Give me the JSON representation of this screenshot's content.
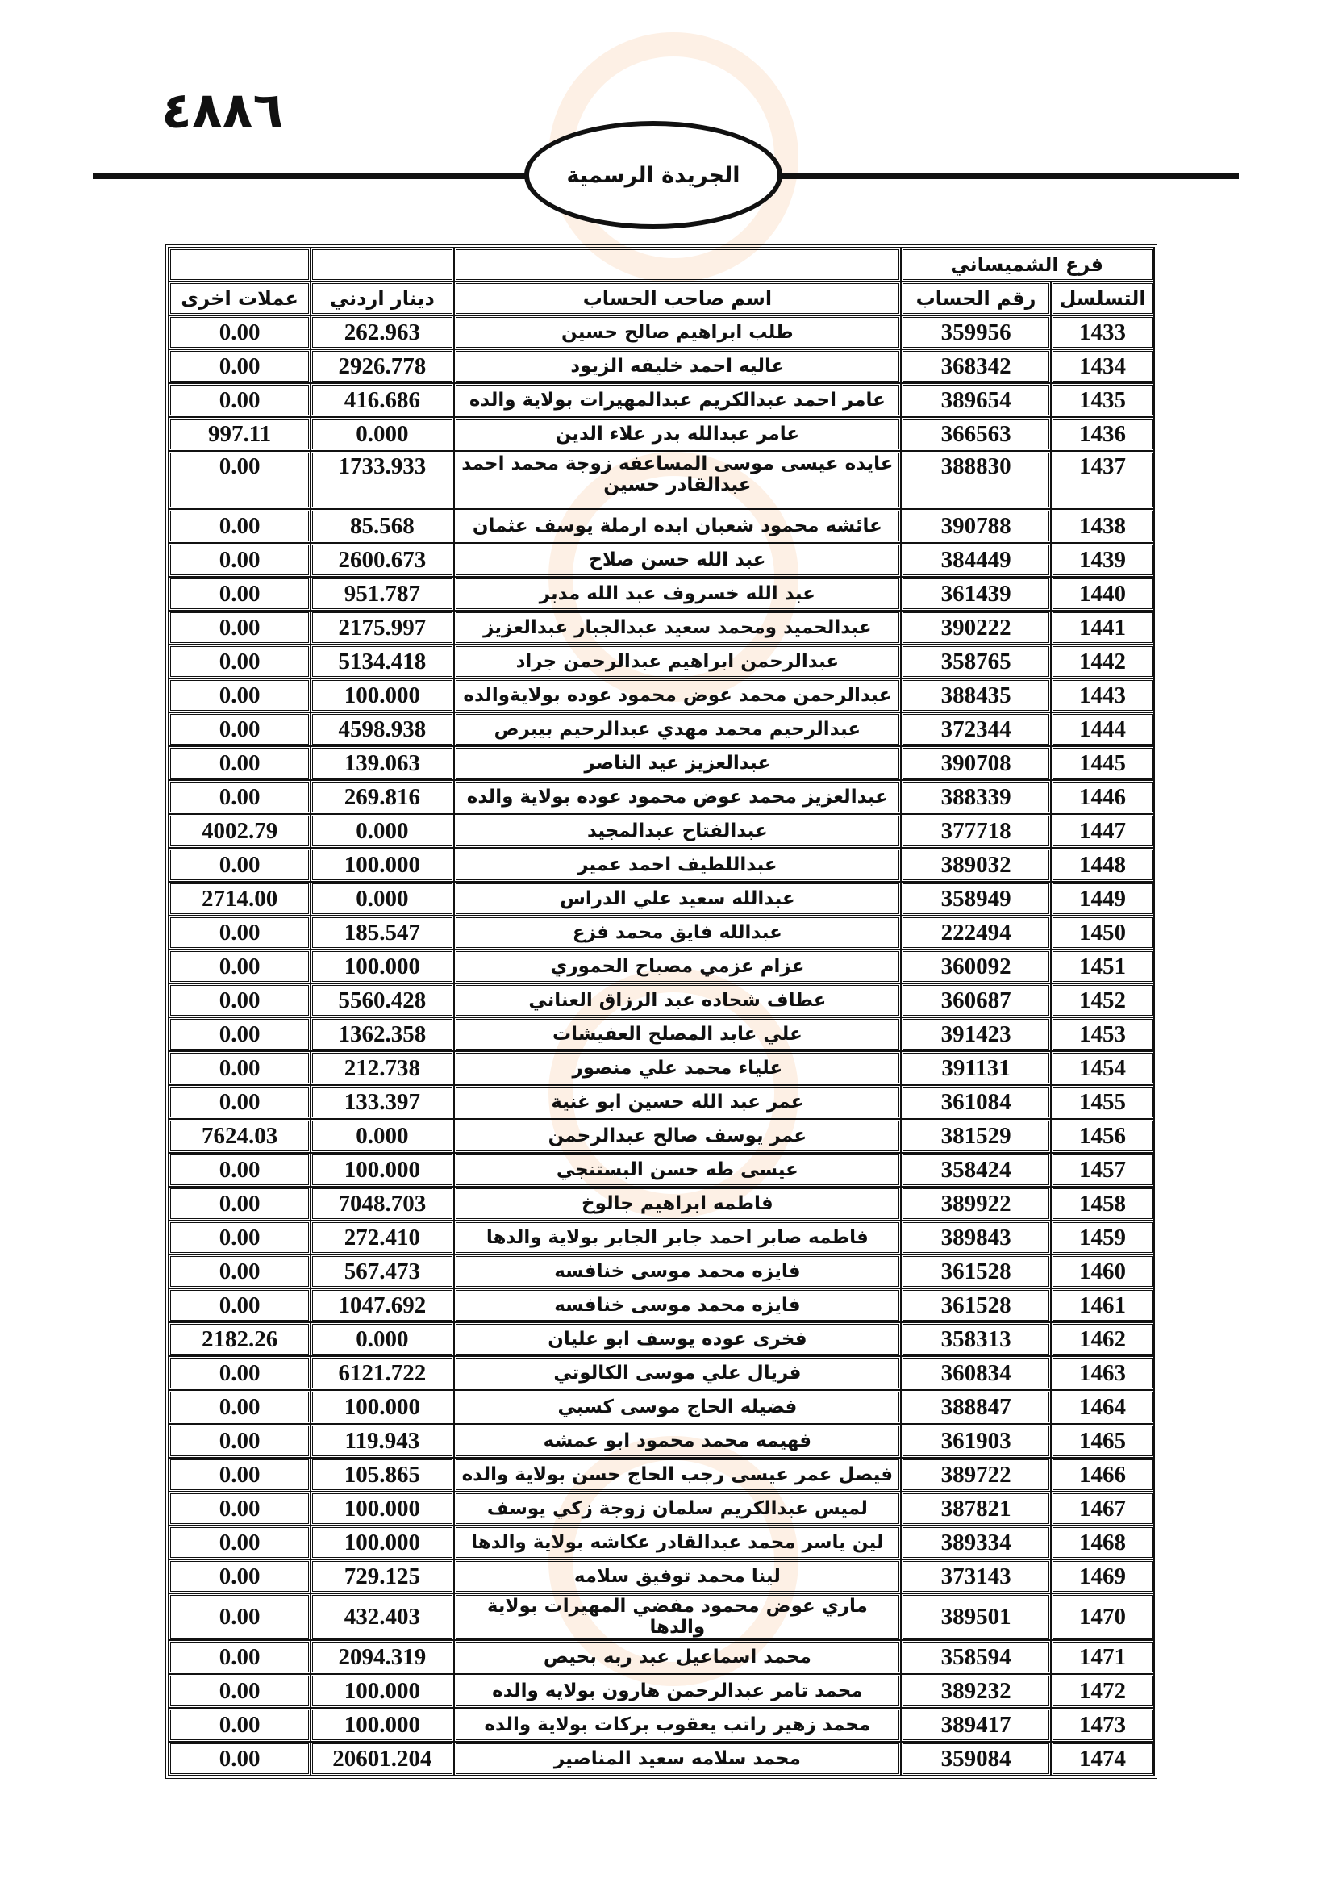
{
  "page_number": "٤٨٨٦",
  "masthead": "الجريدة الرسمية",
  "table": {
    "branch": "فرع الشميساني",
    "headers": {
      "serial": "التسلسل",
      "account": "رقم الحساب",
      "name": "اسم صاحب الحساب",
      "jod": "دينار اردني",
      "other": "عملات اخرى"
    },
    "rows": [
      {
        "serial": "1433",
        "account": "359956",
        "name": "طلب ابراهيم صالح حسين",
        "jod": "262.963",
        "other": "0.00"
      },
      {
        "serial": "1434",
        "account": "368342",
        "name": "عاليه احمد خليفه الزيود",
        "jod": "2926.778",
        "other": "0.00"
      },
      {
        "serial": "1435",
        "account": "389654",
        "name": "عامر احمد عبدالكريم عبدالمهيرات بولاية والده",
        "jod": "416.686",
        "other": "0.00"
      },
      {
        "serial": "1436",
        "account": "366563",
        "name": "عامر عبدالله بدر علاء الدين",
        "jod": "0.000",
        "other": "997.11"
      },
      {
        "serial": "1437",
        "account": "388830",
        "name": "عايده عيسى موسى المساعفه زوجة محمد احمد عبدالقادر حسين",
        "jod": "1733.933",
        "other": "0.00"
      },
      {
        "serial": "1438",
        "account": "390788",
        "name": "عائشه محمود شعبان ابده ارملة يوسف عثمان",
        "jod": "85.568",
        "other": "0.00"
      },
      {
        "serial": "1439",
        "account": "384449",
        "name": "عبد الله حسن صلاح",
        "jod": "2600.673",
        "other": "0.00"
      },
      {
        "serial": "1440",
        "account": "361439",
        "name": "عبد الله خسروف عبد الله مدبر",
        "jod": "951.787",
        "other": "0.00"
      },
      {
        "serial": "1441",
        "account": "390222",
        "name": "عبدالحميد ومحمد سعيد عبدالجبار عبدالعزيز",
        "jod": "2175.997",
        "other": "0.00"
      },
      {
        "serial": "1442",
        "account": "358765",
        "name": "عبدالرحمن ابراهيم عبدالرحمن جراد",
        "jod": "5134.418",
        "other": "0.00"
      },
      {
        "serial": "1443",
        "account": "388435",
        "name": "عبدالرحمن محمد عوض محمود عوده بولايةوالده",
        "jod": "100.000",
        "other": "0.00"
      },
      {
        "serial": "1444",
        "account": "372344",
        "name": "عبدالرحيم محمد مهدي عبدالرحيم بيبرص",
        "jod": "4598.938",
        "other": "0.00"
      },
      {
        "serial": "1445",
        "account": "390708",
        "name": "عبدالعزيز عيد الناصر",
        "jod": "139.063",
        "other": "0.00"
      },
      {
        "serial": "1446",
        "account": "388339",
        "name": "عبدالعزيز محمد عوض محمود عوده بولاية والده",
        "jod": "269.816",
        "other": "0.00"
      },
      {
        "serial": "1447",
        "account": "377718",
        "name": "عبدالفتاح عبدالمجيد",
        "jod": "0.000",
        "other": "4002.79"
      },
      {
        "serial": "1448",
        "account": "389032",
        "name": "عبداللطيف احمد عمير",
        "jod": "100.000",
        "other": "0.00"
      },
      {
        "serial": "1449",
        "account": "358949",
        "name": "عبدالله سعيد علي الدراس",
        "jod": "0.000",
        "other": "2714.00"
      },
      {
        "serial": "1450",
        "account": "222494",
        "name": "عبدالله فايق محمد فزع",
        "jod": "185.547",
        "other": "0.00"
      },
      {
        "serial": "1451",
        "account": "360092",
        "name": "عزام عزمي مصباح الحموري",
        "jod": "100.000",
        "other": "0.00"
      },
      {
        "serial": "1452",
        "account": "360687",
        "name": "عطاف شحاده عبد الرزاق العناني",
        "jod": "5560.428",
        "other": "0.00"
      },
      {
        "serial": "1453",
        "account": "391423",
        "name": "علي عابد المصلح العفيشات",
        "jod": "1362.358",
        "other": "0.00"
      },
      {
        "serial": "1454",
        "account": "391131",
        "name": "علياء محمد علي منصور",
        "jod": "212.738",
        "other": "0.00"
      },
      {
        "serial": "1455",
        "account": "361084",
        "name": "عمر عبد الله حسين ابو غنية",
        "jod": "133.397",
        "other": "0.00"
      },
      {
        "serial": "1456",
        "account": "381529",
        "name": "عمر يوسف صالح عبدالرحمن",
        "jod": "0.000",
        "other": "7624.03"
      },
      {
        "serial": "1457",
        "account": "358424",
        "name": "عيسى طه حسن البستنجي",
        "jod": "100.000",
        "other": "0.00"
      },
      {
        "serial": "1458",
        "account": "389922",
        "name": "فاطمه ابراهيم جالوخ",
        "jod": "7048.703",
        "other": "0.00"
      },
      {
        "serial": "1459",
        "account": "389843",
        "name": "فاطمه صابر احمد جابر الجابر بولاية والدها",
        "jod": "272.410",
        "other": "0.00"
      },
      {
        "serial": "1460",
        "account": "361528",
        "name": "فايزه محمد موسى خنافسه",
        "jod": "567.473",
        "other": "0.00"
      },
      {
        "serial": "1461",
        "account": "361528",
        "name": "فايزه محمد موسى خنافسه",
        "jod": "1047.692",
        "other": "0.00"
      },
      {
        "serial": "1462",
        "account": "358313",
        "name": "فخرى عوده يوسف ابو عليان",
        "jod": "0.000",
        "other": "2182.26"
      },
      {
        "serial": "1463",
        "account": "360834",
        "name": "فريال علي موسى الكالوتي",
        "jod": "6121.722",
        "other": "0.00"
      },
      {
        "serial": "1464",
        "account": "388847",
        "name": "فضيله الحاج موسى كسبي",
        "jod": "100.000",
        "other": "0.00"
      },
      {
        "serial": "1465",
        "account": "361903",
        "name": "فهيمه محمد محمود ابو عمشه",
        "jod": "119.943",
        "other": "0.00"
      },
      {
        "serial": "1466",
        "account": "389722",
        "name": "فيصل عمر عيسى رجب الحاج حسن بولاية والده",
        "jod": "105.865",
        "other": "0.00"
      },
      {
        "serial": "1467",
        "account": "387821",
        "name": "لميس عبدالكريم سلمان زوجة زكي يوسف",
        "jod": "100.000",
        "other": "0.00"
      },
      {
        "serial": "1468",
        "account": "389334",
        "name": "لين ياسر محمد عبدالقادر عكاشه بولاية والدها",
        "jod": "100.000",
        "other": "0.00"
      },
      {
        "serial": "1469",
        "account": "373143",
        "name": "لينا محمد توفيق سلامه",
        "jod": "729.125",
        "other": "0.00"
      },
      {
        "serial": "1470",
        "account": "389501",
        "name": "ماري عوض محمود مفضي المهيرات بولاية والدها",
        "jod": "432.403",
        "other": "0.00"
      },
      {
        "serial": "1471",
        "account": "358594",
        "name": "محمد اسماعيل عبد ربه بحيص",
        "jod": "2094.319",
        "other": "0.00"
      },
      {
        "serial": "1472",
        "account": "389232",
        "name": "محمد تامر عبدالرحمن هارون بولايه والده",
        "jod": "100.000",
        "other": "0.00"
      },
      {
        "serial": "1473",
        "account": "389417",
        "name": "محمد زهير راتب يعقوب بركات بولاية والده",
        "jod": "100.000",
        "other": "0.00"
      },
      {
        "serial": "1474",
        "account": "359084",
        "name": "محمد سلامه سعيد المناصير",
        "jod": "20601.204",
        "other": "0.00"
      }
    ]
  }
}
